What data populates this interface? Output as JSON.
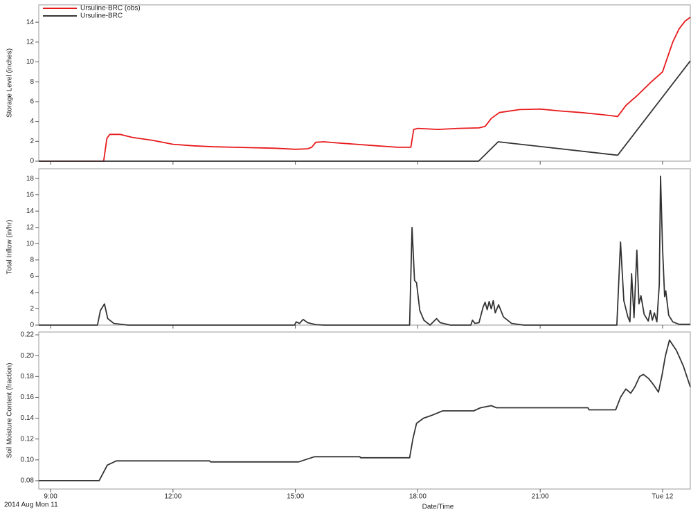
{
  "chart_data": [
    {
      "type": "line",
      "y_label": "Storage Level (inches)",
      "legend": "upper left",
      "xlim": [
        8.71,
        24.68
      ],
      "ylim": [
        0,
        15.75
      ],
      "yticks": [
        0,
        2,
        4,
        6,
        8,
        10,
        12,
        14
      ],
      "series": [
        {
          "name": "Ursuline-BRC (obs)",
          "color": "#e8191b",
          "x": [
            8.71,
            10.3,
            10.38,
            10.45,
            10.7,
            11.0,
            11.5,
            12.0,
            12.5,
            13.0,
            13.5,
            14.0,
            14.5,
            15.0,
            15.3,
            15.4,
            15.5,
            15.7,
            16.0,
            16.5,
            17.0,
            17.5,
            17.83,
            17.9,
            18.0,
            18.5,
            19.0,
            19.5,
            19.65,
            19.8,
            20.0,
            20.5,
            21.0,
            21.5,
            22.0,
            22.5,
            22.9,
            23.1,
            23.4,
            23.7,
            24.0,
            24.1,
            24.25,
            24.4,
            24.55,
            24.68
          ],
          "values": [
            0,
            0,
            2.3,
            2.7,
            2.7,
            2.4,
            2.1,
            1.7,
            1.55,
            1.45,
            1.4,
            1.35,
            1.3,
            1.2,
            1.25,
            1.4,
            1.9,
            1.95,
            1.85,
            1.7,
            1.55,
            1.4,
            1.4,
            3.2,
            3.3,
            3.2,
            3.3,
            3.35,
            3.5,
            4.3,
            4.9,
            5.2,
            5.25,
            5.05,
            4.9,
            4.7,
            4.5,
            5.6,
            6.7,
            7.9,
            9.0,
            10.2,
            12.0,
            13.3,
            14.1,
            14.5
          ]
        },
        {
          "name": "Ursuline-BRC",
          "color": "#333333",
          "x": [
            8.71,
            19.49,
            19.97,
            22.9,
            24.68
          ],
          "values": [
            0,
            0,
            1.95,
            0.6,
            10.1
          ]
        }
      ]
    },
    {
      "type": "line",
      "y_label": "Total Inflow (in/hr)",
      "xlim": [
        8.71,
        24.68
      ],
      "ylim": [
        0,
        19.2
      ],
      "yticks": [
        0,
        2,
        4,
        6,
        8,
        10,
        12,
        14,
        16,
        18
      ],
      "series": [
        {
          "color": "#333333",
          "x": [
            8.71,
            10.15,
            10.22,
            10.32,
            10.4,
            10.55,
            10.9,
            14.98,
            15.02,
            15.1,
            15.19,
            15.3,
            15.5,
            15.7,
            17.8,
            17.86,
            17.92,
            17.97,
            18.05,
            18.15,
            18.3,
            18.46,
            18.55,
            18.8,
            19.3,
            19.34,
            19.4,
            19.5,
            19.6,
            19.65,
            19.7,
            19.75,
            19.8,
            19.85,
            19.9,
            19.98,
            20.1,
            20.3,
            20.6,
            22.88,
            22.97,
            23.05,
            23.15,
            23.2,
            23.24,
            23.3,
            23.37,
            23.42,
            23.47,
            23.55,
            23.65,
            23.7,
            23.75,
            23.8,
            23.86,
            23.92,
            23.95,
            24.0,
            24.05,
            24.08,
            24.15,
            24.25,
            24.4,
            24.68
          ],
          "values": [
            0,
            0,
            1.8,
            2.6,
            0.8,
            0.2,
            0,
            0,
            0.4,
            0.2,
            0.7,
            0.3,
            0.05,
            0,
            0,
            12.0,
            5.5,
            5.2,
            1.8,
            0.6,
            0,
            0.8,
            0.3,
            0,
            0,
            0.6,
            0.2,
            0.3,
            2.2,
            2.8,
            1.9,
            2.9,
            2.0,
            3.0,
            1.5,
            2.5,
            1.0,
            0.2,
            0,
            0,
            10.2,
            3.0,
            1.0,
            0.4,
            6.3,
            0.9,
            9.2,
            2.6,
            3.6,
            1.3,
            0.5,
            1.8,
            0.6,
            1.5,
            0.4,
            5.0,
            18.3,
            9.5,
            3.5,
            4.2,
            1.2,
            0.4,
            0.1,
            0.1
          ]
        }
      ]
    },
    {
      "type": "line",
      "y_label": "Soil Moisture Content (fraction)",
      "x_label": "Date/Time",
      "date_label": "2014 Aug Mon 11",
      "xlim": [
        8.71,
        24.68
      ],
      "xticks": [
        {
          "value": 9,
          "label": "9:00"
        },
        {
          "value": 12,
          "label": "12:00"
        },
        {
          "value": 15,
          "label": "15:00"
        },
        {
          "value": 18,
          "label": "18:00"
        },
        {
          "value": 21,
          "label": "21:00"
        },
        {
          "value": 24,
          "label": "Tue 12"
        }
      ],
      "ylim": [
        0.072,
        0.2227
      ],
      "yticks": [
        0.08,
        {
          "value": 0.1,
          "label": "0.10"
        },
        0.12,
        0.14,
        0.16,
        0.18,
        {
          "value": 0.2,
          "label": "0.20"
        },
        0.22
      ],
      "series": [
        {
          "color": "#333333",
          "x": [
            8.71,
            10.19,
            10.39,
            10.61,
            12.9,
            12.92,
            15.08,
            15.31,
            15.47,
            16.58,
            16.6,
            17.8,
            17.88,
            17.97,
            18.14,
            18.36,
            18.61,
            19.37,
            19.54,
            19.8,
            19.93,
            22.17,
            22.2,
            22.85,
            22.97,
            23.1,
            23.22,
            23.32,
            23.44,
            23.53,
            23.66,
            23.78,
            23.9,
            23.98,
            24.07,
            24.17,
            24.34,
            24.51,
            24.68
          ],
          "values": [
            0.08,
            0.08,
            0.095,
            0.099,
            0.099,
            0.098,
            0.098,
            0.101,
            0.103,
            0.103,
            0.102,
            0.102,
            0.12,
            0.135,
            0.14,
            0.143,
            0.147,
            0.147,
            0.15,
            0.152,
            0.15,
            0.15,
            0.148,
            0.148,
            0.16,
            0.168,
            0.164,
            0.17,
            0.18,
            0.182,
            0.178,
            0.172,
            0.165,
            0.18,
            0.2,
            0.215,
            0.205,
            0.19,
            0.17
          ]
        }
      ]
    }
  ]
}
